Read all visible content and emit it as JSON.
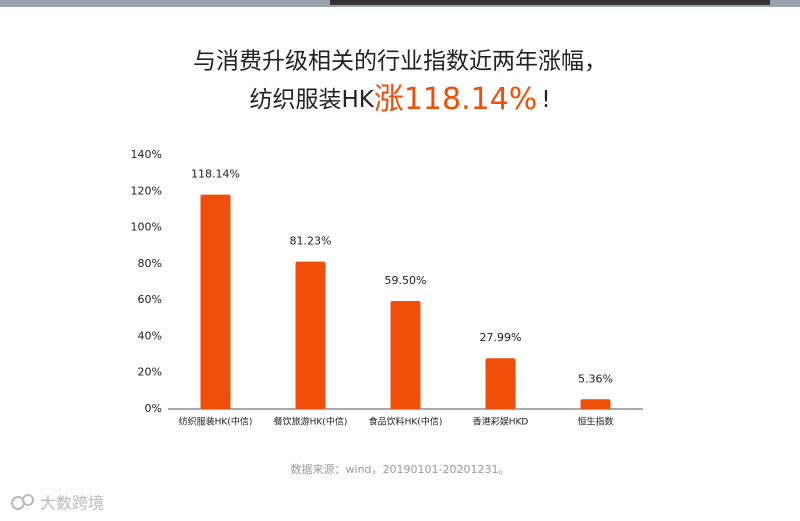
{
  "chart_data": {
    "type": "bar",
    "title_line1": "与消费升级相关的行业指数近两年涨幅，",
    "title_line2": {
      "prefix": "纺织服装HK",
      "highlight": "涨118.14%",
      "suffix": "!"
    },
    "categories": [
      "纺织服装HK(中信)",
      "餐饮旅游HK(中信)",
      "食品饮料HK(中信)",
      "香港彩娱HKD",
      "恒生指数"
    ],
    "values": [
      118.14,
      81.23,
      59.5,
      27.99,
      5.36
    ],
    "value_labels": [
      "118.14%",
      "81.23%",
      "59.50%",
      "27.99%",
      "5.36%"
    ],
    "color": "#f04e0b",
    "ylim": [
      0,
      140
    ],
    "yticks": [
      {
        "value": 0,
        "label": "0%"
      },
      {
        "value": 20,
        "label": "20%"
      },
      {
        "value": 40,
        "label": "40%"
      },
      {
        "value": 60,
        "label": "60%"
      },
      {
        "value": 80,
        "label": "80%"
      },
      {
        "value": 100,
        "label": "100%"
      },
      {
        "value": 120,
        "label": "120%"
      },
      {
        "value": 140,
        "label": "140%"
      }
    ],
    "source": "数据来源：wind，20190101-20201231。",
    "watermark": "大数跨境"
  }
}
